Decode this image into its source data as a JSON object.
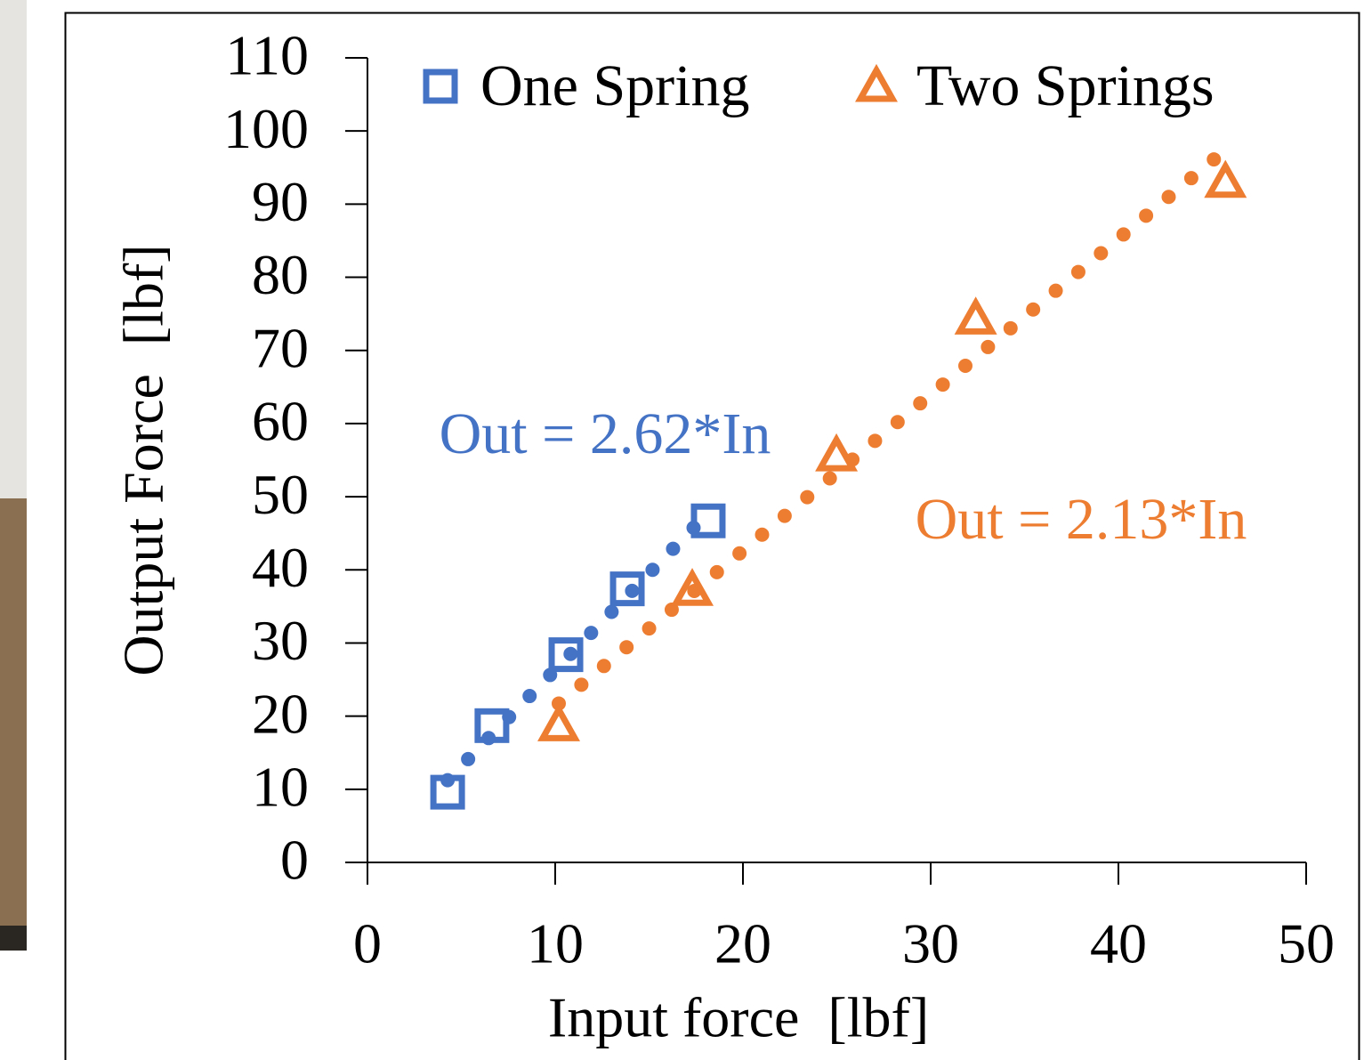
{
  "chart_data": {
    "type": "scatter",
    "xlabel": "Input force  [lbf]",
    "ylabel": "Output Force  [lbf]",
    "xlim": [
      0,
      50
    ],
    "xticks": [
      0,
      10,
      20,
      30,
      40,
      50
    ],
    "ylim": [
      0,
      110
    ],
    "yticks": [
      0,
      10,
      20,
      30,
      40,
      50,
      60,
      70,
      80,
      90,
      100,
      110
    ],
    "legend": "top",
    "series": [
      {
        "name": "One Spring",
        "color": "#4472c4",
        "marker": "square",
        "trendline": true,
        "x": [
          4.27,
          6.63,
          10.57,
          13.84,
          18.15
        ],
        "values": [
          9.6,
          18.7,
          28.4,
          37.4,
          46.7
        ]
      },
      {
        "name": "Two Springs",
        "color": "#ed7d31",
        "marker": "triangle",
        "trendline": true,
        "x": [
          10.19,
          17.3,
          24.98,
          32.4,
          45.7
        ],
        "values": [
          18.7,
          37.2,
          55.6,
          74.3,
          93.0
        ]
      }
    ],
    "annotations": [
      {
        "text": "Out = 2.62*In",
        "color": "#4472c4"
      },
      {
        "text": "Out = 2.13*In",
        "color": "#ed7d31"
      }
    ]
  }
}
